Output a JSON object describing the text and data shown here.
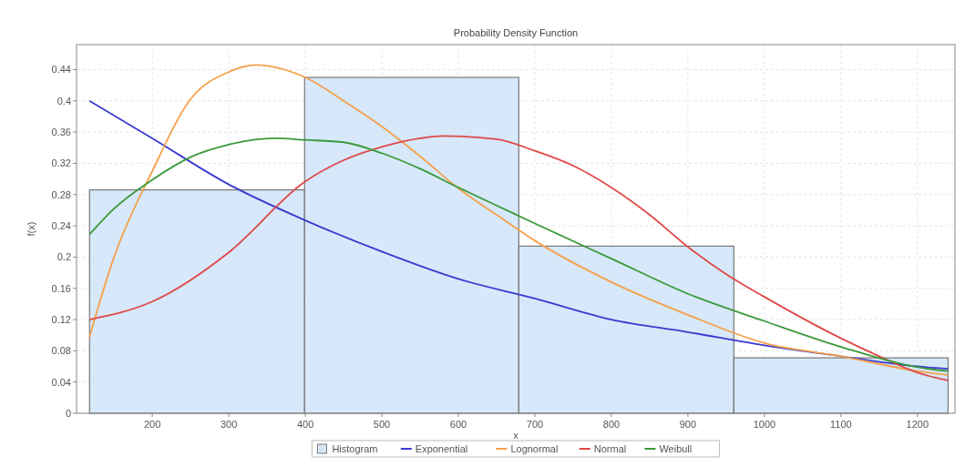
{
  "chart_data": {
    "type": "line",
    "title": "Probability Density Function",
    "xlabel": "x",
    "ylabel": "f(x)",
    "xlim": [
      101,
      1249
    ],
    "xticks": [
      200,
      300,
      400,
      500,
      600,
      700,
      800,
      900,
      1000,
      1100,
      1200
    ],
    "ylim": [
      0,
      0.472
    ],
    "yticks": [
      0,
      0.04,
      0.08,
      0.12,
      0.16,
      0.2,
      0.24,
      0.28,
      0.32,
      0.36,
      0.4,
      0.44
    ],
    "grid": true,
    "legend": "bottom",
    "series": [
      {
        "name": "Histogram",
        "type": "histogram",
        "color": "#d6e8f9",
        "bins": [
          118,
          399,
          679,
          960,
          1240
        ],
        "values": [
          0.286,
          0.43,
          0.214,
          0.071
        ]
      },
      {
        "name": "Exponential",
        "color": "#3a3ad0",
        "x": [
          118,
          200,
          300,
          400,
          500,
          600,
          700,
          800,
          900,
          1000,
          1100,
          1200,
          1240
        ],
        "values": [
          0.4,
          0.352,
          0.293,
          0.247,
          0.207,
          0.172,
          0.147,
          0.12,
          0.104,
          0.087,
          0.073,
          0.06,
          0.057
        ]
      },
      {
        "name": "Lognormal",
        "color": "#f5a04a",
        "x": [
          118,
          150,
          200,
          250,
          300,
          335,
          400,
          450,
          500,
          550,
          600,
          650,
          700,
          800,
          900,
          1000,
          1100,
          1200,
          1240
        ],
        "values": [
          0.098,
          0.2,
          0.31,
          0.402,
          0.437,
          0.446,
          0.43,
          0.4,
          0.367,
          0.329,
          0.288,
          0.254,
          0.221,
          0.168,
          0.126,
          0.09,
          0.073,
          0.054,
          0.049
        ]
      },
      {
        "name": "Normal",
        "color": "#e04848",
        "x": [
          118,
          200,
          300,
          400,
          450,
          500,
          550,
          580,
          650,
          700,
          750,
          800,
          850,
          900,
          950,
          1000,
          1100,
          1150,
          1200,
          1240
        ],
        "values": [
          0.12,
          0.143,
          0.206,
          0.297,
          0.324,
          0.341,
          0.352,
          0.355,
          0.351,
          0.336,
          0.317,
          0.289,
          0.254,
          0.213,
          0.178,
          0.149,
          0.096,
          0.073,
          0.052,
          0.042
        ]
      },
      {
        "name": "Weibull",
        "color": "#3a9a3a",
        "x": [
          118,
          150,
          200,
          250,
          300,
          360,
          400,
          450,
          500,
          550,
          600,
          650,
          700,
          800,
          900,
          1000,
          1100,
          1200,
          1240
        ],
        "values": [
          0.229,
          0.262,
          0.299,
          0.328,
          0.344,
          0.352,
          0.35,
          0.347,
          0.333,
          0.313,
          0.289,
          0.266,
          0.243,
          0.198,
          0.153,
          0.118,
          0.085,
          0.059,
          0.054
        ]
      }
    ]
  }
}
